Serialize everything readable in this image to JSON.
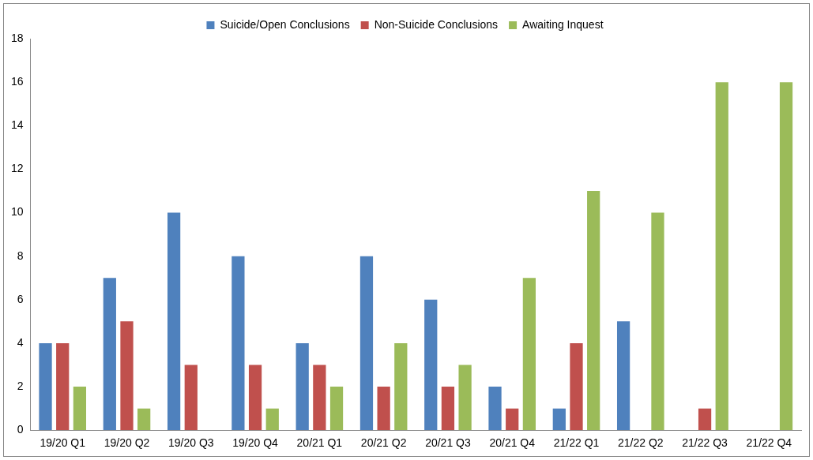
{
  "chart_data": {
    "type": "bar",
    "categories": [
      "19/20 Q1",
      "19/20 Q2",
      "19/20 Q3",
      "19/20 Q4",
      "20/21 Q1",
      "20/21 Q2",
      "20/21 Q3",
      "20/21 Q4",
      "21/22 Q1",
      "21/22 Q2",
      "21/22 Q3",
      "21/22 Q4"
    ],
    "series": [
      {
        "name": "Suicide/Open Conclusions",
        "color": "#4f81bd",
        "values": [
          4,
          7,
          10,
          8,
          4,
          8,
          6,
          2,
          1,
          5,
          0,
          0
        ]
      },
      {
        "name": "Non-Suicide Conclusions",
        "color": "#c0504d",
        "values": [
          4,
          5,
          3,
          3,
          3,
          2,
          2,
          1,
          4,
          0,
          1,
          0
        ]
      },
      {
        "name": "Awaiting Inquest",
        "color": "#9bbb59",
        "values": [
          2,
          1,
          0,
          1,
          2,
          4,
          3,
          7,
          11,
          10,
          16,
          16
        ]
      }
    ],
    "ylim": [
      0,
      18
    ],
    "yticks": [
      0,
      2,
      4,
      6,
      8,
      10,
      12,
      14,
      16,
      18
    ],
    "grid": false,
    "legend": "top"
  }
}
